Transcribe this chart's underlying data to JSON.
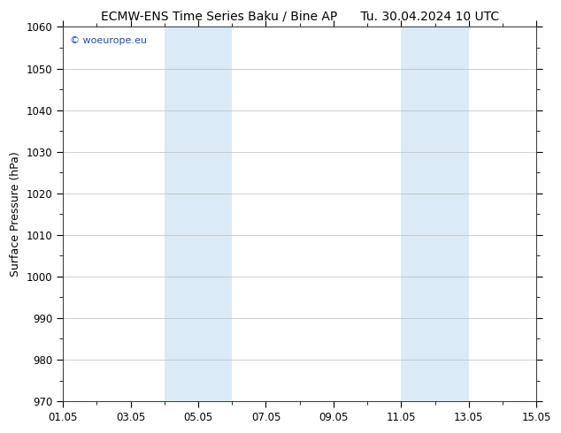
{
  "title_left": "ECMW-ENS Time Series Baku / Bine AP",
  "title_right": "Tu. 30.04.2024 10 UTC",
  "ylabel": "Surface Pressure (hPa)",
  "ylim": [
    970,
    1060
  ],
  "yticks": [
    970,
    980,
    990,
    1000,
    1010,
    1020,
    1030,
    1040,
    1050,
    1060
  ],
  "xlim": [
    0,
    14
  ],
  "xtick_labels": [
    "01.05",
    "03.05",
    "05.05",
    "07.05",
    "09.05",
    "11.05",
    "13.05",
    "15.05"
  ],
  "xtick_positions": [
    0,
    2,
    4,
    6,
    8,
    10,
    12,
    14
  ],
  "shade_regions": [
    {
      "start": 3.0,
      "end": 4.0
    },
    {
      "start": 4.0,
      "end": 5.0
    },
    {
      "start": 10.0,
      "end": 11.0
    },
    {
      "start": 11.0,
      "end": 12.0
    }
  ],
  "shade_color": "#daeaf7",
  "shade_color2": "#e8f3fb",
  "background_color": "#ffffff",
  "watermark_text": "© woeurope.eu",
  "watermark_color": "#1a4faa",
  "title_fontsize": 10,
  "axis_label_fontsize": 9,
  "tick_fontsize": 8.5,
  "watermark_fontsize": 8,
  "grid_color": "#bbbbbb",
  "border_color": "#333333",
  "fig_width": 6.34,
  "fig_height": 4.9,
  "dpi": 100
}
